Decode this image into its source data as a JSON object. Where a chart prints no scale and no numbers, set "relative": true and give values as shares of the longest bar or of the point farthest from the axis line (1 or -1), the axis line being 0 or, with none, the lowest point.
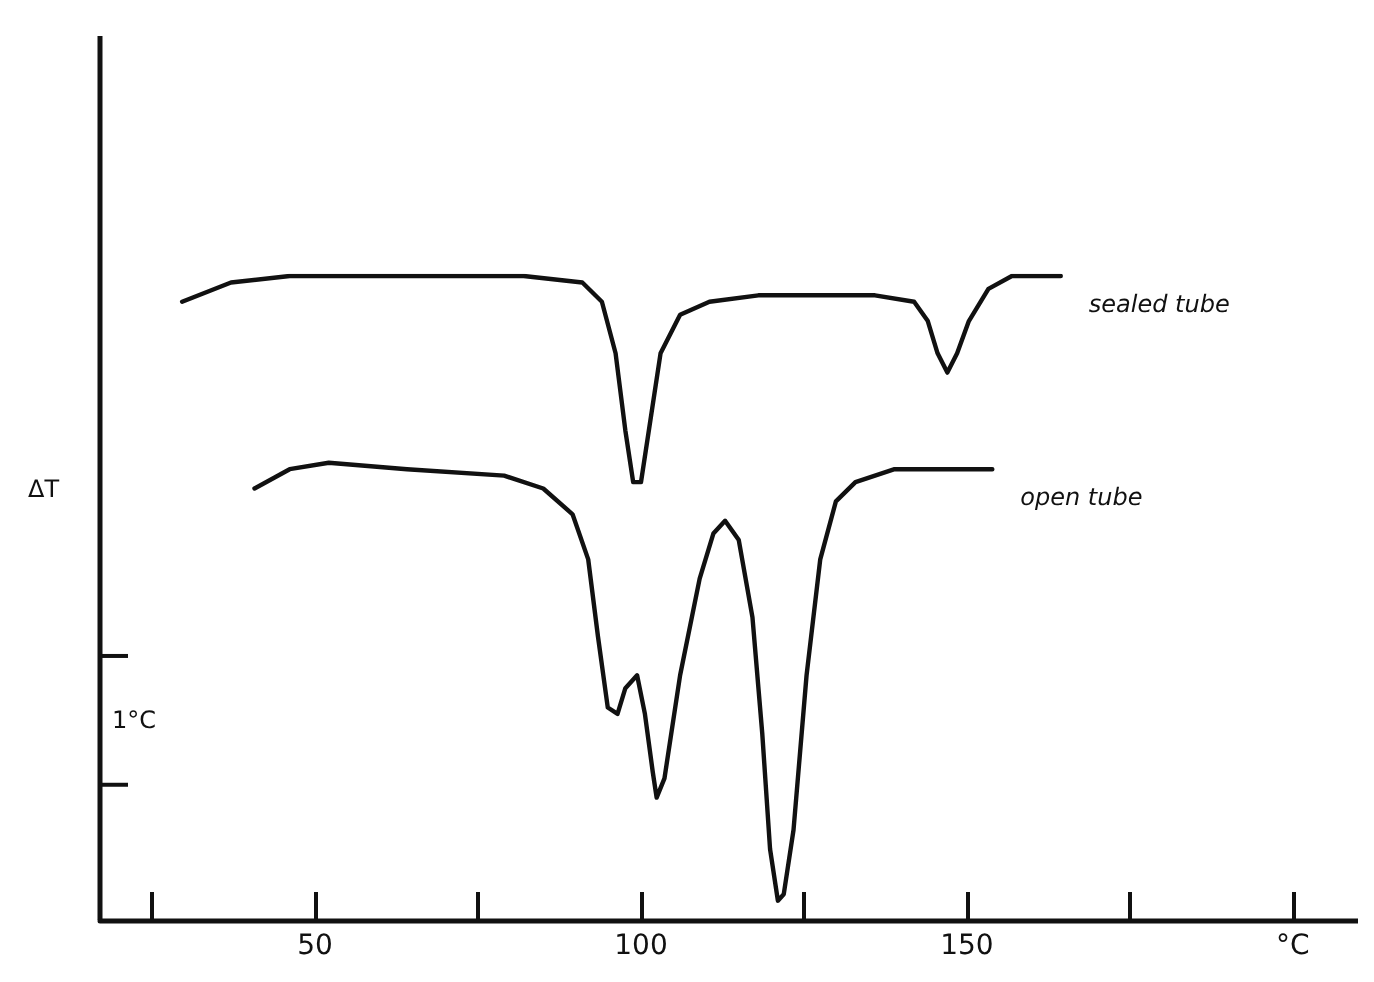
{
  "chart_data": {
    "type": "line",
    "relative": true,
    "ylabel": "ΔT",
    "annotations": [
      "1°C"
    ],
    "xlim": [
      17,
      210
    ],
    "xticks": [
      {
        "value": 25,
        "label": null
      },
      50,
      {
        "value": 75,
        "label": null
      },
      100,
      {
        "value": 125,
        "label": null
      },
      150,
      {
        "value": 175,
        "label": null
      },
      {
        "value": 200,
        "label": "°C"
      }
    ],
    "grid": false,
    "legend": false,
    "marker": "none",
    "line_style": "solid",
    "series": [
      {
        "name": "sealed tube",
        "color": "#111111",
        "x": [
          29.6,
          37.1,
          46.1,
          64.1,
          82.0,
          91.0,
          94.0,
          96.1,
          97.6,
          98.8,
          100.0,
          101.2,
          103.0,
          106.0,
          110.5,
          118.0,
          135.9,
          141.9,
          144.0,
          145.5,
          147.0,
          148.5,
          150.3,
          153.3,
          156.9,
          164.4
        ],
        "values": [
          0.96,
          0.99,
          1.0,
          1.0,
          1.0,
          0.99,
          0.96,
          0.88,
          0.76,
          0.68,
          0.68,
          0.76,
          0.88,
          0.94,
          0.96,
          0.97,
          0.97,
          0.96,
          0.93,
          0.88,
          0.85,
          0.88,
          0.93,
          0.98,
          1.0,
          1.0
        ]
      },
      {
        "name": "open tube",
        "color": "#111111",
        "x": [
          40.7,
          46.1,
          52.1,
          64.1,
          79.0,
          85.0,
          89.5,
          91.9,
          93.4,
          94.9,
          96.4,
          97.6,
          99.4,
          100.6,
          101.8,
          102.4,
          103.6,
          106.0,
          109.0,
          111.1,
          112.9,
          115.0,
          117.1,
          118.6,
          119.8,
          121.0,
          121.9,
          123.4,
          125.4,
          127.5,
          129.9,
          132.9,
          138.9,
          144.9,
          153.9
        ],
        "values": [
          0.67,
          0.7,
          0.71,
          0.7,
          0.69,
          0.67,
          0.63,
          0.56,
          0.44,
          0.33,
          0.32,
          0.36,
          0.38,
          0.32,
          0.23,
          0.19,
          0.22,
          0.38,
          0.53,
          0.6,
          0.62,
          0.59,
          0.47,
          0.29,
          0.11,
          0.03,
          0.04,
          0.14,
          0.38,
          0.56,
          0.65,
          0.68,
          0.7,
          0.7,
          0.7
        ]
      }
    ]
  }
}
